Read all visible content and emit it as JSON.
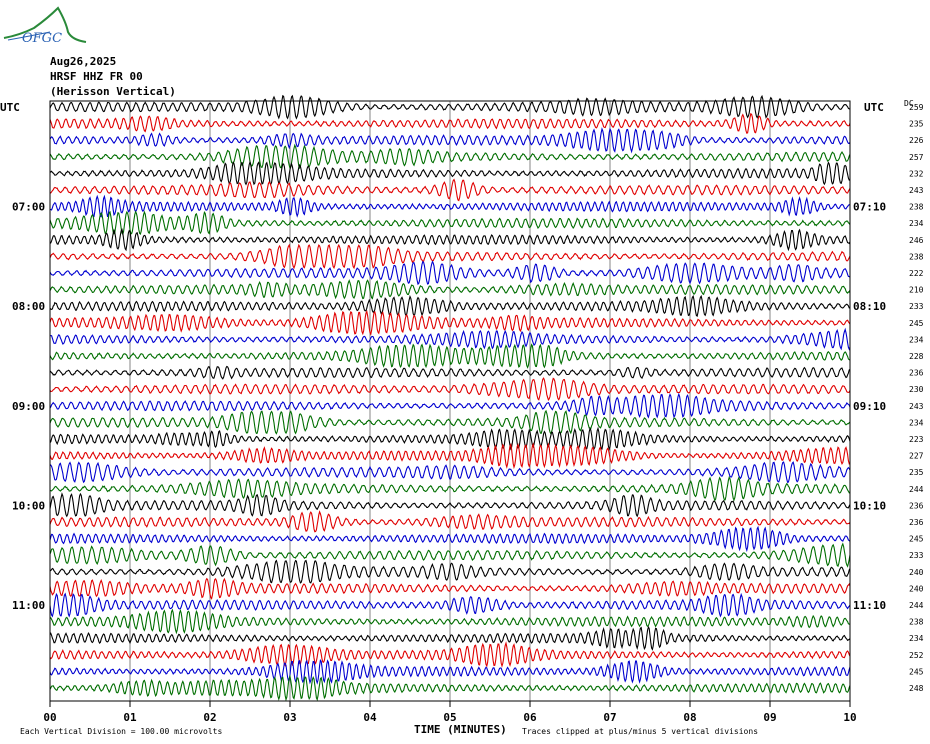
{
  "logo": {
    "text": "OFGC",
    "color": "#2a62b4",
    "mountain_color": "#2a8a3a"
  },
  "header": {
    "date": "Aug26,2025",
    "station": "HRSF HHZ FR 00",
    "name": "(Herisson Vertical)"
  },
  "footer": {
    "vertical_division": "Each Vertical Division =  100.00 microvolts",
    "clipping": "Traces clipped at plus/minus 5 vertical divisions"
  },
  "chart_data": {
    "type": "line",
    "title": "HRSF HHZ FR 00 (Herisson Vertical)",
    "xlabel": "TIME (MINUTES)",
    "x_ticks": [
      "00",
      "01",
      "02",
      "03",
      "04",
      "05",
      "06",
      "07",
      "08",
      "09",
      "10"
    ],
    "xlim": [
      0,
      10
    ],
    "left_axis_title": "UTC",
    "right_axis_title": "UTC",
    "dc_label": "DC",
    "left_time_labels": [
      {
        "row": 6,
        "label": "07:00"
      },
      {
        "row": 12,
        "label": "08:00"
      },
      {
        "row": 18,
        "label": "09:00"
      },
      {
        "row": 24,
        "label": "10:00"
      },
      {
        "row": 30,
        "label": "11:00"
      }
    ],
    "right_time_labels": [
      {
        "row": 6,
        "label": "07:10"
      },
      {
        "row": 12,
        "label": "08:10"
      },
      {
        "row": 18,
        "label": "09:10"
      },
      {
        "row": 24,
        "label": "10:10"
      },
      {
        "row": 30,
        "label": "11:10"
      }
    ],
    "trace_colors": [
      "#000000",
      "#e00000",
      "#0000d0",
      "#006e00"
    ],
    "dc_offsets": [
      259,
      235,
      226,
      257,
      232,
      243,
      238,
      234,
      246,
      238,
      222,
      210,
      233,
      245,
      234,
      228,
      236,
      230,
      243,
      234,
      223,
      227,
      235,
      244,
      236,
      236,
      245,
      233,
      240,
      240,
      244,
      238,
      234,
      252,
      245,
      248
    ],
    "trace_minutes": 10,
    "grid": true
  }
}
